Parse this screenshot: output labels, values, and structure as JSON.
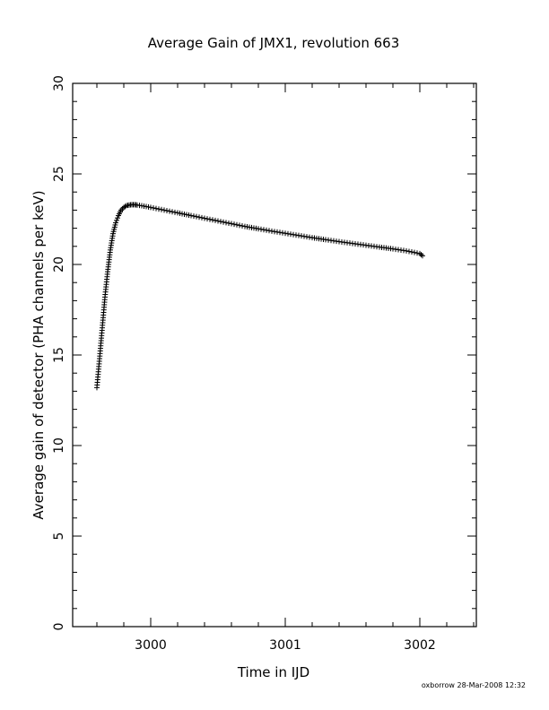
{
  "chart_data": {
    "type": "scatter",
    "title": "Average Gain of JMX1, revolution 663",
    "xlabel": "Time in IJD",
    "ylabel": "Average gain of detector (PHA channels per keV)",
    "xlim": [
      2999.42,
      3002.42
    ],
    "ylim": [
      0,
      30
    ],
    "xticks": [
      3000,
      3001,
      3002
    ],
    "yticks": [
      0,
      5,
      10,
      15,
      20,
      25,
      30
    ],
    "grid": false,
    "marker": "+",
    "color": "#000000",
    "series": [
      {
        "x": [
          2999.6,
          2999.62,
          2999.64,
          2999.66,
          2999.68,
          2999.7,
          2999.72,
          2999.74,
          2999.76,
          2999.78,
          2999.8,
          2999.82,
          2999.84,
          2999.86,
          2999.88,
          2999.9,
          2999.95,
          3000.0,
          3000.1,
          3000.2,
          3000.3,
          3000.4,
          3000.5,
          3000.6,
          3000.7,
          3000.8,
          3000.9,
          3001.0,
          3001.1,
          3001.2,
          3001.3,
          3001.4,
          3001.5,
          3001.6,
          3001.7,
          3001.8,
          3001.9,
          3002.0,
          3002.02
        ],
        "y": [
          13.2,
          14.8,
          16.5,
          18.2,
          19.6,
          20.8,
          21.7,
          22.3,
          22.7,
          23.0,
          23.15,
          23.25,
          23.28,
          23.3,
          23.3,
          23.28,
          23.22,
          23.15,
          23.0,
          22.85,
          22.7,
          22.55,
          22.4,
          22.25,
          22.1,
          21.97,
          21.84,
          21.72,
          21.6,
          21.48,
          21.37,
          21.26,
          21.16,
          21.06,
          20.96,
          20.86,
          20.75,
          20.6,
          20.48
        ]
      }
    ]
  },
  "footer": "oxborrow 28-Mar-2008 12:32"
}
